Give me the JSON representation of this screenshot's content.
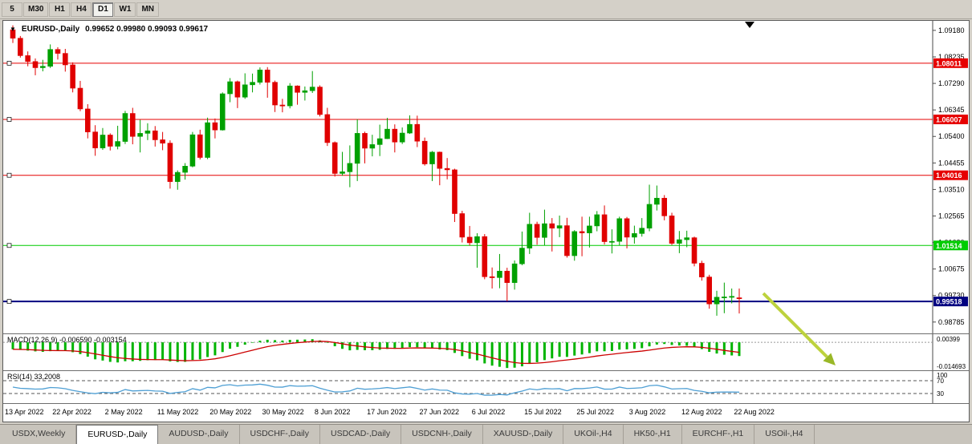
{
  "toolbar": {
    "timeframes": [
      "5",
      "M30",
      "H1",
      "H4",
      "D1",
      "W1",
      "MN"
    ],
    "active": "D1"
  },
  "chart": {
    "symbol": "EURUSD-,Daily",
    "ohlc_text": "0.99652 0.99980 0.99093 0.99617"
  },
  "chart_data": {
    "type": "candlestick",
    "title": "EURUSD-,Daily",
    "ohlc_display": {
      "open": "0.99652",
      "high": "0.99980",
      "low": "0.99093",
      "close": "0.99617"
    },
    "y_range": [
      0.9838,
      1.0952
    ],
    "price_ticks": [
      "1.09180",
      "1.08235",
      "1.07290",
      "1.06345",
      "1.05400",
      "1.04455",
      "1.03510",
      "1.02565",
      "1.01620",
      "1.00675",
      "0.99730",
      "0.98785"
    ],
    "hlines": [
      {
        "price": "1.08011",
        "value": 1.08011,
        "color": "#e60000",
        "width": 1
      },
      {
        "price": "1.06007",
        "value": 1.06007,
        "color": "#e60000",
        "width": 1
      },
      {
        "price": "1.04016",
        "value": 1.04016,
        "color": "#e60000",
        "width": 1
      },
      {
        "price": "1.01514",
        "value": 1.01514,
        "color": "#00cc00",
        "width": 1
      },
      {
        "price": "0.99518",
        "value": 0.99518,
        "color": "#000080",
        "width": 2
      }
    ],
    "x_labels": [
      "13 Apr 2022",
      "22 Apr 2022",
      "2 May 2022",
      "11 May 2022",
      "20 May 2022",
      "30 May 2022",
      "8 Jun 2022",
      "17 Jun 2022",
      "27 Jun 2022",
      "6 Jul 2022",
      "15 Jul 2022",
      "25 Jul 2022",
      "3 Aug 2022",
      "12 Aug 2022",
      "22 Aug 2022"
    ],
    "label_every_n_bars": 7,
    "colors": {
      "up": "#00a000",
      "down": "#e00000",
      "macd_hist": "#00b400",
      "macd_signal": "#cc0000",
      "rsi_line": "#4e9fd4"
    },
    "candles": [
      [
        1.092,
        1.0936,
        1.0873,
        1.089
      ],
      [
        1.089,
        1.0898,
        1.0821,
        1.0828
      ],
      [
        1.0828,
        1.0843,
        1.079,
        1.0807
      ],
      [
        1.0807,
        1.0818,
        1.0758,
        1.0785
      ],
      [
        1.0785,
        1.0813,
        1.0772,
        1.079
      ],
      [
        1.079,
        1.0868,
        1.0784,
        1.085
      ],
      [
        1.085,
        1.0858,
        1.0814,
        1.0836
      ],
      [
        1.0836,
        1.0852,
        1.0771,
        1.0795
      ],
      [
        1.0795,
        1.0804,
        1.0697,
        1.0712
      ],
      [
        1.0712,
        1.0738,
        1.063,
        1.0638
      ],
      [
        1.0638,
        1.0655,
        1.0533,
        1.0556
      ],
      [
        1.0556,
        1.058,
        1.0471,
        1.0499
      ],
      [
        1.0499,
        1.057,
        1.0492,
        1.0545
      ],
      [
        1.0545,
        1.0551,
        1.049,
        1.0505
      ],
      [
        1.0505,
        1.0578,
        1.0494,
        1.0522
      ],
      [
        1.0522,
        1.0631,
        1.0513,
        1.0622
      ],
      [
        1.0622,
        1.0642,
        1.0512,
        1.054
      ],
      [
        1.054,
        1.0599,
        1.0483,
        1.0551
      ],
      [
        1.0551,
        1.0587,
        1.0527,
        1.056
      ],
      [
        1.056,
        1.0577,
        1.0504,
        1.0528
      ],
      [
        1.0528,
        1.0556,
        1.0491,
        1.0516
      ],
      [
        1.0516,
        1.0526,
        1.0354,
        1.0379
      ],
      [
        1.0379,
        1.0419,
        1.035,
        1.0412
      ],
      [
        1.0412,
        1.0445,
        1.0386,
        1.0434
      ],
      [
        1.0434,
        1.0556,
        1.043,
        1.0546
      ],
      [
        1.0546,
        1.0564,
        1.0458,
        1.0465
      ],
      [
        1.0465,
        1.0607,
        1.0459,
        1.0589
      ],
      [
        1.0589,
        1.0604,
        1.0533,
        1.0563
      ],
      [
        1.0563,
        1.0697,
        1.0561,
        1.0692
      ],
      [
        1.0692,
        1.0748,
        1.0662,
        1.0735
      ],
      [
        1.0735,
        1.0739,
        1.0641,
        1.068
      ],
      [
        1.068,
        1.0765,
        1.0674,
        1.0724
      ],
      [
        1.0724,
        1.0764,
        1.0697,
        1.0733
      ],
      [
        1.0733,
        1.0786,
        1.0725,
        1.0777
      ],
      [
        1.0777,
        1.0787,
        1.0678,
        1.0733
      ],
      [
        1.0733,
        1.0739,
        1.0627,
        1.0652
      ],
      [
        1.0652,
        1.0674,
        1.0626,
        1.0649
      ],
      [
        1.0649,
        1.073,
        1.064,
        1.072
      ],
      [
        1.072,
        1.0722,
        1.0653,
        1.0697
      ],
      [
        1.0697,
        1.0718,
        1.0668,
        1.0703
      ],
      [
        1.0703,
        1.0773,
        1.0695,
        1.0716
      ],
      [
        1.0716,
        1.0722,
        1.0611,
        1.0618
      ],
      [
        1.0618,
        1.0642,
        1.0506,
        1.0518
      ],
      [
        1.0518,
        1.0522,
        1.0397,
        1.0408
      ],
      [
        1.0408,
        1.0485,
        1.04,
        1.0414
      ],
      [
        1.0414,
        1.0508,
        1.0359,
        1.0444
      ],
      [
        1.0444,
        1.0601,
        1.0381,
        1.0551
      ],
      [
        1.0551,
        1.0557,
        1.0444,
        1.0498
      ],
      [
        1.0498,
        1.0546,
        1.0469,
        1.0511
      ],
      [
        1.0511,
        1.0582,
        1.047,
        1.0532
      ],
      [
        1.0532,
        1.0606,
        1.0531,
        1.0566
      ],
      [
        1.0566,
        1.0583,
        1.0483,
        1.052
      ],
      [
        1.052,
        1.0572,
        1.0513,
        1.0552
      ],
      [
        1.0552,
        1.0615,
        1.0549,
        1.0583
      ],
      [
        1.0583,
        1.0614,
        1.0502,
        1.0523
      ],
      [
        1.0523,
        1.0536,
        1.0436,
        1.0442
      ],
      [
        1.0442,
        1.0488,
        1.0381,
        1.0484
      ],
      [
        1.0484,
        1.0486,
        1.0366,
        1.0426
      ],
      [
        1.0426,
        1.0463,
        1.0387,
        1.0421
      ],
      [
        1.0421,
        1.0425,
        1.0235,
        1.0265
      ],
      [
        1.0265,
        1.0275,
        1.0162,
        1.0181
      ],
      [
        1.0181,
        1.0221,
        1.0151,
        1.0161
      ],
      [
        1.0161,
        1.0195,
        1.0072,
        1.0183
      ],
      [
        1.0183,
        1.0192,
        1.0031,
        1.004
      ],
      [
        1.004,
        1.0073,
        0.9998,
        1.0037
      ],
      [
        1.0037,
        1.0121,
        0.9999,
        1.006
      ],
      [
        1.006,
        1.0072,
        0.9952,
        1.0019
      ],
      [
        1.0019,
        1.0098,
        0.9994,
        1.0086
      ],
      [
        1.0086,
        1.0201,
        1.0081,
        1.0142
      ],
      [
        1.0142,
        1.0268,
        1.0121,
        1.0227
      ],
      [
        1.0227,
        1.0236,
        1.0154,
        1.018
      ],
      [
        1.018,
        1.0279,
        1.0152,
        1.0229
      ],
      [
        1.0229,
        1.0249,
        1.013,
        1.0213
      ],
      [
        1.0213,
        1.0258,
        1.0181,
        1.0222
      ],
      [
        1.0222,
        1.025,
        1.0108,
        1.0115
      ],
      [
        1.0115,
        1.0206,
        1.0097,
        1.0201
      ],
      [
        1.0201,
        1.0254,
        1.0113,
        1.0196
      ],
      [
        1.0196,
        1.0254,
        1.0144,
        1.0221
      ],
      [
        1.0221,
        1.0274,
        1.0202,
        1.0261
      ],
      [
        1.0261,
        1.0294,
        1.0155,
        1.0165
      ],
      [
        1.0165,
        1.0209,
        1.0123,
        1.0166
      ],
      [
        1.0166,
        1.0254,
        1.0152,
        1.0247
      ],
      [
        1.0247,
        1.0253,
        1.0141,
        1.0181
      ],
      [
        1.0181,
        1.0222,
        1.0158,
        1.0194
      ],
      [
        1.0194,
        1.0249,
        1.0183,
        1.0213
      ],
      [
        1.0213,
        1.0368,
        1.0202,
        1.0298
      ],
      [
        1.0298,
        1.0365,
        1.0276,
        1.032
      ],
      [
        1.032,
        1.0331,
        1.0241,
        1.0257
      ],
      [
        1.0257,
        1.0268,
        1.0153,
        1.0159
      ],
      [
        1.0159,
        1.0203,
        1.0124,
        1.0172
      ],
      [
        1.0172,
        1.0204,
        1.0145,
        1.0179
      ],
      [
        1.0179,
        1.0183,
        1.0077,
        1.0088
      ],
      [
        1.0088,
        1.0097,
        1.0026,
        1.0039
      ],
      [
        1.0039,
        1.0047,
        0.9926,
        0.9943
      ],
      [
        0.9943,
        0.999,
        0.9901,
        0.9967
      ],
      [
        0.9967,
        1.0019,
        0.991,
        0.9968
      ],
      [
        0.9968,
        0.9998,
        0.9945,
        0.997
      ],
      [
        0.9965,
        0.9998,
        0.9909,
        0.9962
      ]
    ],
    "indicators": {
      "macd": {
        "display": "MACD(12,26,9) -0.006590 -0.003154",
        "params": [
          12,
          26,
          9
        ],
        "axis_top": "0.00399",
        "axis_bottom": "-0.014693",
        "range": [
          -0.0155,
          0.0045
        ]
      },
      "rsi": {
        "display": "RSI(14) 33,2008",
        "period": 14,
        "levels": [
          "100",
          "70",
          "30"
        ]
      }
    },
    "annotation_arrow": {
      "from": [
        947,
        340
      ],
      "to": [
        1037,
        430
      ],
      "shaft_color": "#bdd23e",
      "head_color": "#9ab827"
    }
  },
  "tabs": {
    "items": [
      "USDX,Weekly",
      "EURUSD-,Daily",
      "AUDUSD-,Daily",
      "USDCHF-,Daily",
      "USDCAD-,Daily",
      "USDCNH-,Daily",
      "XAUUSD-,Daily",
      "UKOil-,H4",
      "HK50-,H1",
      "EURCHF-,H1",
      "USOil-,H4"
    ],
    "active_index": 1
  }
}
